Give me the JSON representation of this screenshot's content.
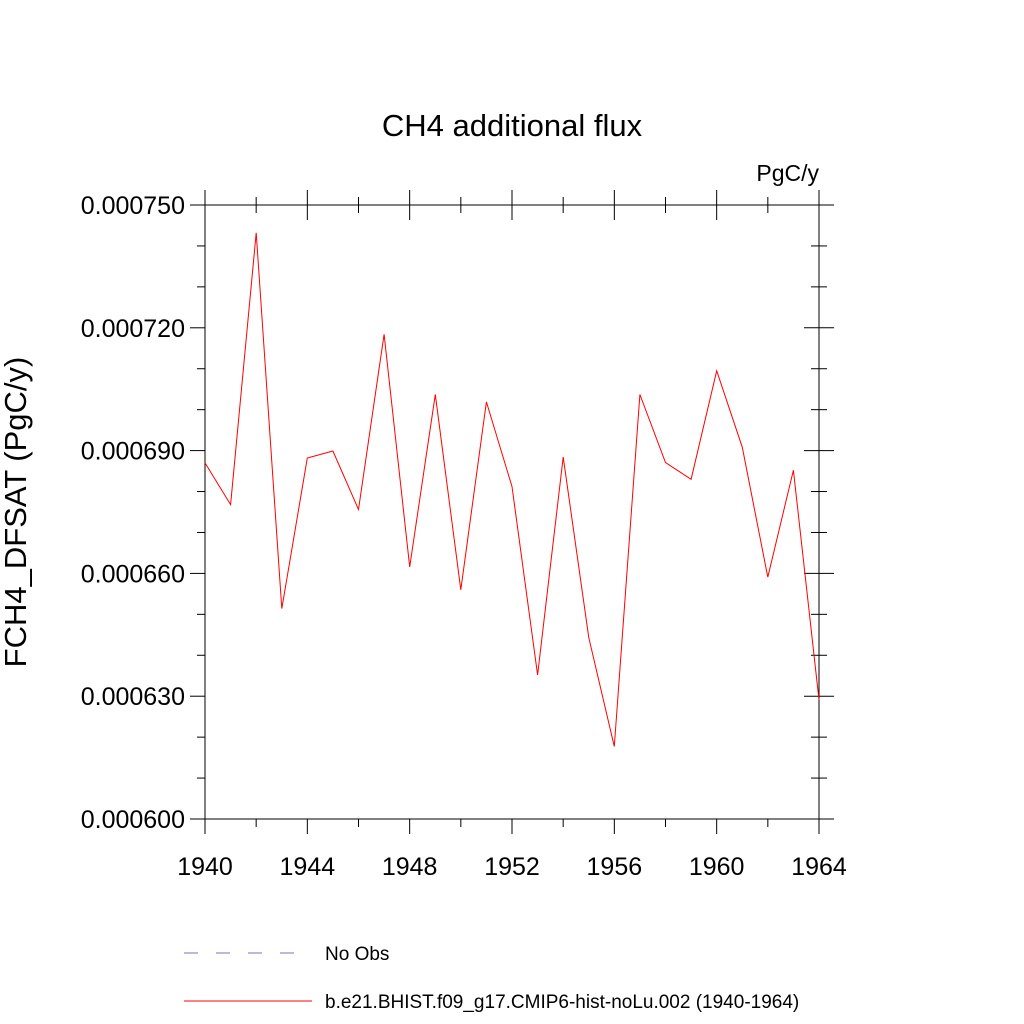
{
  "chart_data": {
    "type": "line",
    "title": "CH4 additional flux",
    "units": "PgC/y",
    "ylabel": "FCH4_DFSAT  (PgC/y)",
    "xlabel": "",
    "xlim": [
      1940,
      1964
    ],
    "ylim": [
      0.0006,
      0.00075
    ],
    "xticks": [
      1940,
      1944,
      1948,
      1952,
      1956,
      1960,
      1964
    ],
    "xtick_labels": [
      "1940",
      "1944",
      "1948",
      "1952",
      "1956",
      "1960",
      "1964"
    ],
    "yticks": [
      0.0006,
      0.00063,
      0.00066,
      0.00069,
      0.00072,
      0.00075
    ],
    "ytick_labels": [
      "0.000600",
      "0.000630",
      "0.000660",
      "0.000690",
      "0.000720",
      "0.000750"
    ],
    "grid": false,
    "legend_position": "bottom",
    "series": [
      {
        "name": "b.e21.BHIST.f09_g17.CMIP6-hist-noLu.002 (1940-1964)",
        "color": "#ff0000",
        "style": "solid",
        "x": [
          1940,
          1941,
          1942,
          1943,
          1944,
          1945,
          1946,
          1947,
          1948,
          1949,
          1950,
          1951,
          1952,
          1953,
          1954,
          1955,
          1956,
          1957,
          1958,
          1959,
          1960,
          1961,
          1962,
          1963,
          1964
        ],
        "y": [
          0.000687,
          0.0006768,
          0.0007432,
          0.0006514,
          0.0006882,
          0.0006899,
          0.0006756,
          0.0007184,
          0.0006616,
          0.0007037,
          0.000656,
          0.0007019,
          0.0006812,
          0.0006352,
          0.0006884,
          0.0006443,
          0.0006177,
          0.0007037,
          0.0006871,
          0.000683,
          0.0007095,
          0.0006908,
          0.0006591,
          0.0006852,
          0.0006291
        ]
      },
      {
        "name": "No Obs",
        "color": "#7b6fc9",
        "style": "dashed",
        "x": [],
        "y": []
      }
    ]
  }
}
